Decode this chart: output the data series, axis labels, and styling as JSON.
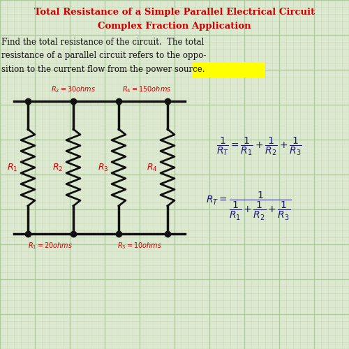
{
  "title1": "Total Resistance of a Simple Parallel Electrical Circuit",
  "title2": "Complex Fraction Application",
  "bg_color": "#dde8d0",
  "grid_minor_color": "#c8d8b8",
  "grid_major_color": "#b0c8a0",
  "title_color": "#cc0000",
  "text_color": "#111111",
  "red_label_color": "#cc0000",
  "circuit_color": "#111111",
  "formula_color": "#1a1a6e",
  "highlight_color": "#ffff00",
  "R_labels": [
    "$R_1$",
    "$R_2$",
    "$R_3$",
    "$R_4$"
  ],
  "top_label1": "$R_2 = 30ohms$",
  "top_label2": "$R_4 = 150ohms$",
  "bot_label1": "$R_1 = 20ohms$",
  "bot_label2": "$R_3 = 10ohms$"
}
